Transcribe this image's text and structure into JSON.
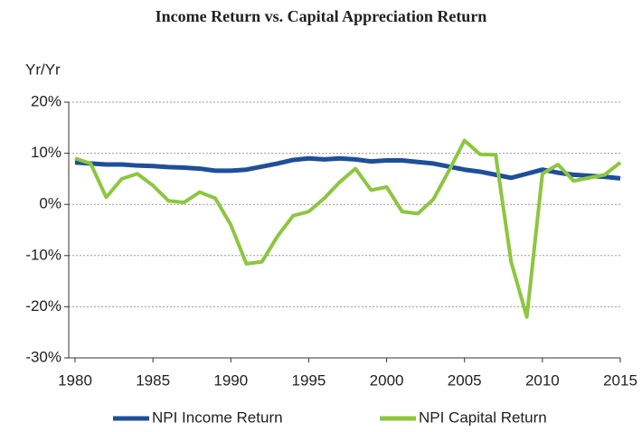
{
  "chart_data": {
    "type": "line",
    "title": "Income Return vs. Capital Appreciation Return",
    "y_label": "Yr/Yr",
    "x": [
      1980,
      1981,
      1982,
      1983,
      1984,
      1985,
      1986,
      1987,
      1988,
      1989,
      1990,
      1991,
      1992,
      1993,
      1994,
      1995,
      1996,
      1997,
      1998,
      1999,
      2000,
      2001,
      2002,
      2003,
      2004,
      2005,
      2006,
      2007,
      2008,
      2009,
      2010,
      2011,
      2012,
      2013,
      2014,
      2015
    ],
    "series": [
      {
        "name": "NPI Income Return",
        "color": "#1f4e9a",
        "values": [
          8.2,
          8,
          7.8,
          7.8,
          7.6,
          7.5,
          7.3,
          7.2,
          7,
          6.6,
          6.6,
          6.8,
          7.4,
          8,
          8.7,
          9,
          8.8,
          9,
          8.8,
          8.4,
          8.6,
          8.6,
          8.3,
          8,
          7.4,
          6.8,
          6.4,
          5.8,
          5.2,
          6,
          6.8,
          6.2,
          5.8,
          5.6,
          5.4,
          5.1
        ]
      },
      {
        "name": "NPI Capital Return",
        "color": "#8dc63f",
        "values": [
          9,
          8,
          1.4,
          5,
          6,
          3.7,
          0.7,
          0.4,
          2.4,
          1.2,
          -4,
          -11.6,
          -11.2,
          -6.2,
          -2.2,
          -1.4,
          1.2,
          4.4,
          7,
          2.8,
          3.4,
          -1.4,
          -1.8,
          1,
          6.6,
          12.5,
          9.8,
          9.7,
          -11.3,
          -22,
          6,
          7.8,
          4.6,
          5.2,
          5.8,
          8.2
        ]
      }
    ],
    "xlim": [
      1980,
      2015
    ],
    "xticks": [
      1980,
      1985,
      1990,
      1995,
      2000,
      2005,
      2010,
      2015
    ],
    "ylim": [
      -30,
      20
    ],
    "yticks": [
      {
        "value": -30,
        "label": "-30%"
      },
      {
        "value": -20,
        "label": "-20%"
      },
      {
        "value": -10,
        "label": "-10%"
      },
      {
        "value": 0,
        "label": "0%"
      },
      {
        "value": 10,
        "label": "10%"
      },
      {
        "value": 20,
        "label": "20%"
      }
    ],
    "grid": true,
    "legend": "bottom"
  }
}
